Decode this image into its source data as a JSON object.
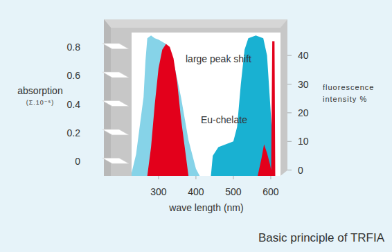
{
  "chart_data": {
    "type": "area",
    "title": "Basic principle of TRFIA",
    "x_label": "wave length (nm)",
    "y_label": "absorption",
    "y_label_sub": "(Σ.10⁻⁵)",
    "y2_label": "fluorescence intensity %",
    "annotations": [
      "large peak shift",
      "Eu-chelate"
    ],
    "xlim": [
      228,
      626
    ],
    "xticks": [
      300,
      400,
      500,
      600
    ],
    "ylim": [
      -0.1,
      0.9
    ],
    "yticks": [
      0,
      0.2,
      0.4,
      0.6,
      0.8
    ],
    "y2lim": [
      -2,
      48
    ],
    "y2ticks": [
      0,
      10,
      20,
      30,
      40
    ],
    "series": [
      {
        "type": "area",
        "color": "#86d3e8",
        "x": [
          228,
          240,
          250,
          260,
          265,
          270,
          280,
          290,
          300,
          320,
          340,
          360,
          380,
          400,
          410
        ],
        "values": [
          -0.08,
          0.05,
          0.25,
          0.45,
          0.7,
          0.86,
          0.88,
          0.86,
          0.85,
          0.82,
          0.7,
          0.45,
          0.15,
          -0.05,
          -0.1
        ]
      },
      {
        "type": "area",
        "color": "#e3001b",
        "x": [
          270,
          280,
          290,
          300,
          310,
          320,
          330,
          340,
          350,
          360,
          370,
          380
        ],
        "values": [
          -0.1,
          0.1,
          0.4,
          0.65,
          0.78,
          0.82,
          0.8,
          0.72,
          0.55,
          0.3,
          0.1,
          -0.1
        ]
      },
      {
        "type": "area",
        "color": "#19b1d2",
        "axis": "y2",
        "x": [
          440,
          445,
          460,
          500,
          510,
          520,
          530,
          540,
          560,
          580,
          590,
          600,
          610
        ],
        "values": [
          -2,
          5,
          8,
          10,
          15,
          30,
          42,
          46,
          47,
          46,
          40,
          20,
          -2
        ]
      },
      {
        "type": "area",
        "color": "#e3001b",
        "axis": "y2",
        "x": [
          565,
          575,
          582,
          590,
          598,
          601,
          604,
          610,
          612
        ],
        "values": [
          -2,
          4,
          9,
          6,
          2,
          0,
          45,
          45,
          -2
        ]
      }
    ]
  }
}
